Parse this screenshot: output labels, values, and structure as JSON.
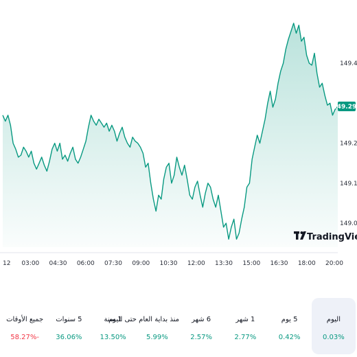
{
  "chart_data": {
    "type": "area",
    "x_ticks": [
      "12",
      "03:00",
      "04:30",
      "06:00",
      "07:30",
      "09:00",
      "10:30",
      "12:00",
      "13:30",
      "15:00",
      "16:30",
      "18:00",
      "20:00"
    ],
    "y_ticks": [
      "149.400",
      "149.200",
      "149.100",
      "149.000"
    ],
    "ylim": [
      148.94,
      149.51
    ],
    "last_price": "149.292",
    "line_color": "#089981",
    "series": [
      {
        "values": [
          149.27,
          149.255,
          149.27,
          149.245,
          149.2,
          149.185,
          149.165,
          149.17,
          149.19,
          149.18,
          149.165,
          149.18,
          149.15,
          149.135,
          149.15,
          149.165,
          149.145,
          149.13,
          149.155,
          149.185,
          149.2,
          149.18,
          149.2,
          149.16,
          149.17,
          149.155,
          149.175,
          149.19,
          149.16,
          149.15,
          149.165,
          149.185,
          149.205,
          149.24,
          149.27,
          149.255,
          149.245,
          149.26,
          149.25,
          149.24,
          149.25,
          149.23,
          149.245,
          149.23,
          149.205,
          149.225,
          149.24,
          149.215,
          149.2,
          149.19,
          149.215,
          149.205,
          149.2,
          149.19,
          149.175,
          149.14,
          149.15,
          149.1,
          149.06,
          149.03,
          149.07,
          149.06,
          149.11,
          149.14,
          149.15,
          149.1,
          149.12,
          149.165,
          149.14,
          149.12,
          149.145,
          149.11,
          149.07,
          149.06,
          149.09,
          149.105,
          149.07,
          149.04,
          149.075,
          149.1,
          149.09,
          149.06,
          149.04,
          149.07,
          149.03,
          148.99,
          149.0,
          148.96,
          148.99,
          149.01,
          148.96,
          148.975,
          149.01,
          149.04,
          149.09,
          149.1,
          149.16,
          149.19,
          149.22,
          149.2,
          149.23,
          149.26,
          149.3,
          149.33,
          149.29,
          149.31,
          149.35,
          149.38,
          149.4,
          149.435,
          149.46,
          149.48,
          149.5,
          149.475,
          149.495,
          149.455,
          149.465,
          149.42,
          149.4,
          149.395,
          149.425,
          149.375,
          149.34,
          149.35,
          149.32,
          149.295,
          149.3,
          149.27,
          149.285,
          149.292
        ]
      }
    ]
  },
  "logo": {
    "brand": "TradingView"
  },
  "periods": [
    {
      "label": "اليوم",
      "value": "0.03%",
      "tone": "pos",
      "active": true
    },
    {
      "label": "5 يوم",
      "value": "0.42%",
      "tone": "pos",
      "active": false
    },
    {
      "label": "1 شهر",
      "value": "2.77%",
      "tone": "pos",
      "active": false
    },
    {
      "label": "6 شهر",
      "value": "2.57%",
      "tone": "pos",
      "active": false
    },
    {
      "label": "منذ بداية العام حتى اليوم",
      "value": "5.99%",
      "tone": "pos",
      "active": false
    },
    {
      "label": "1 سنة",
      "value": "13.50%",
      "tone": "pos",
      "active": false
    },
    {
      "label": "5 سنوات",
      "value": "36.06%",
      "tone": "pos",
      "active": false
    },
    {
      "label": "جميع الأوقات",
      "value": "58.27%-",
      "tone": "neg",
      "active": false
    }
  ]
}
